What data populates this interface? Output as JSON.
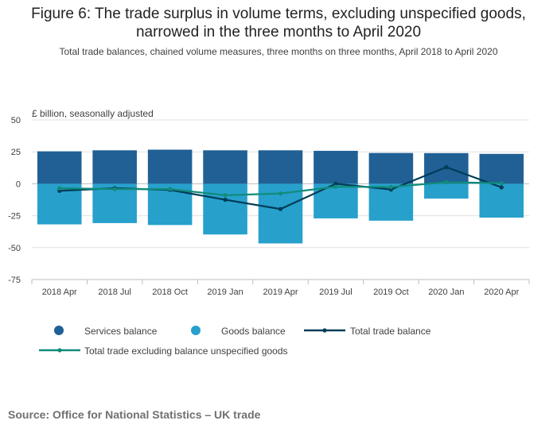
{
  "title_line1": "Figure 6: The trade surplus in volume terms, excluding unspecified goods,",
  "title_line2": "narrowed in the three months to April 2020",
  "subtitle": "Total trade balances, chained volume measures, three months on three months, April 2018 to April 2020",
  "source": "Source: Office for National Statistics – UK trade",
  "colors": {
    "services": "#206095",
    "goods": "#27a0cc",
    "total": "#003c57",
    "total_excl": "#118c7b",
    "grid": "#e0e0e0",
    "axis_text": "#414042"
  },
  "chart_data": {
    "type": "bar",
    "title": "Figure 6: The trade surplus in volume terms, excluding unspecified goods, narrowed in the three months to April 2020",
    "ylabel": "£ billion, seasonally adjusted",
    "ylim": [
      -75,
      50
    ],
    "yticks": [
      50,
      25,
      0,
      -25,
      -50,
      -75
    ],
    "categories": [
      "2018 Apr",
      "2018 Jul",
      "2018 Oct",
      "2019 Jan",
      "2019 Apr",
      "2019 Jul",
      "2019 Oct",
      "2020 Jan",
      "2020 Apr"
    ],
    "series": [
      {
        "name": "Services balance",
        "kind": "bar",
        "values": [
          25.4,
          26.2,
          26.7,
          26.2,
          26.2,
          25.8,
          24.1,
          24.0,
          23.4
        ]
      },
      {
        "name": "Goods balance",
        "kind": "bar",
        "values": [
          -31.8,
          -30.8,
          -32.3,
          -39.7,
          -46.7,
          -27.1,
          -28.9,
          -11.6,
          -26.5
        ]
      },
      {
        "name": "Total trade balance",
        "kind": "line",
        "values": [
          -5.5,
          -3.5,
          -4.8,
          -12.5,
          -19.8,
          0.0,
          -4.5,
          13.0,
          -2.8
        ]
      },
      {
        "name": "Total trade excluding balance unspecified goods",
        "kind": "line",
        "values": [
          -3.5,
          -4.2,
          -4.2,
          -9.0,
          -7.6,
          -2.3,
          -2.5,
          1.2,
          0.5
        ]
      }
    ],
    "legend_position": "bottom"
  }
}
